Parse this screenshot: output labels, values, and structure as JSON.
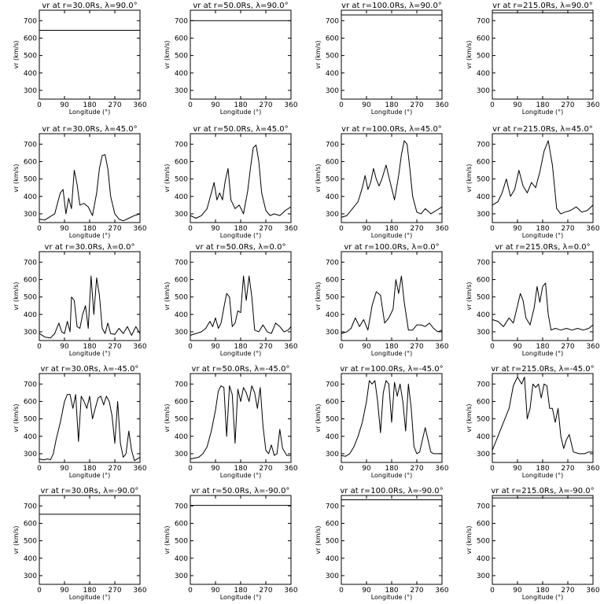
{
  "labels": {
    "xlabel": "Longitude (°)",
    "ylabel": "vr (km/s)",
    "xticks": [
      "0",
      "90",
      "180",
      "270",
      "360"
    ],
    "yticks": [
      "300",
      "400",
      "500",
      "600",
      "700"
    ]
  },
  "chart_data": [
    {
      "type": "line",
      "title": "vr at r=30.0Rs, λ=90.0°",
      "xlabel": "Longitude (°)",
      "ylabel": "vr (km/s)",
      "xlim": [
        0,
        360
      ],
      "ylim": [
        250,
        760
      ],
      "series": [
        {
          "x": [
            0,
            360
          ],
          "y": [
            645,
            645
          ]
        }
      ]
    },
    {
      "type": "line",
      "title": "vr at r=50.0Rs, λ=90.0°",
      "xlabel": "Longitude (°)",
      "ylabel": "vr (km/s)",
      "xlim": [
        0,
        360
      ],
      "ylim": [
        250,
        760
      ],
      "series": [
        {
          "x": [
            0,
            360
          ],
          "y": [
            700,
            700
          ]
        }
      ]
    },
    {
      "type": "line",
      "title": "vr at r=100.0Rs, λ=90.0°",
      "xlabel": "Longitude (°)",
      "ylabel": "vr (km/s)",
      "xlim": [
        0,
        360
      ],
      "ylim": [
        250,
        760
      ],
      "series": [
        {
          "x": [
            0,
            360
          ],
          "y": [
            733,
            733
          ]
        }
      ]
    },
    {
      "type": "line",
      "title": "vr at r=215.0Rs, λ=90.0°",
      "xlabel": "Longitude (°)",
      "ylabel": "vr (km/s)",
      "xlim": [
        0,
        360
      ],
      "ylim": [
        250,
        760
      ],
      "series": [
        {
          "x": [
            0,
            360
          ],
          "y": [
            745,
            745
          ]
        }
      ]
    },
    {
      "type": "line",
      "title": "vr at r=30.0Rs, λ=45.0°",
      "xlabel": "Longitude (°)",
      "ylabel": "vr (km/s)",
      "xlim": [
        0,
        360
      ],
      "ylim": [
        250,
        760
      ],
      "series": [
        {
          "x": [
            0,
            20,
            40,
            55,
            65,
            75,
            85,
            95,
            105,
            115,
            125,
            135,
            145,
            160,
            175,
            190,
            205,
            215,
            225,
            235,
            245,
            255,
            270,
            285,
            300,
            320,
            340,
            360
          ],
          "y": [
            270,
            265,
            285,
            300,
            360,
            420,
            440,
            300,
            390,
            330,
            550,
            470,
            350,
            360,
            340,
            290,
            420,
            560,
            635,
            640,
            560,
            400,
            300,
            270,
            260,
            275,
            290,
            300
          ]
        }
      ]
    },
    {
      "type": "line",
      "title": "vr at r=50.0Rs, λ=45.0°",
      "xlabel": "Longitude (°)",
      "ylabel": "vr (km/s)",
      "xlim": [
        0,
        360
      ],
      "ylim": [
        250,
        760
      ],
      "series": [
        {
          "x": [
            0,
            20,
            40,
            60,
            75,
            85,
            95,
            105,
            115,
            125,
            135,
            145,
            160,
            175,
            190,
            205,
            215,
            225,
            235,
            245,
            255,
            270,
            285,
            300,
            320,
            340,
            360
          ],
          "y": [
            290,
            275,
            290,
            330,
            420,
            480,
            380,
            420,
            380,
            490,
            560,
            380,
            330,
            350,
            300,
            430,
            560,
            680,
            695,
            600,
            420,
            320,
            290,
            300,
            290,
            320,
            340
          ]
        }
      ]
    },
    {
      "type": "line",
      "title": "vr at r=100.0Rs, λ=45.0°",
      "xlabel": "Longitude (°)",
      "ylabel": "vr (km/s)",
      "xlim": [
        0,
        360
      ],
      "ylim": [
        250,
        760
      ],
      "series": [
        {
          "x": [
            0,
            20,
            40,
            60,
            75,
            85,
            95,
            105,
            115,
            125,
            135,
            145,
            160,
            175,
            190,
            205,
            215,
            225,
            235,
            245,
            255,
            270,
            285,
            300,
            320,
            340,
            360
          ],
          "y": [
            280,
            290,
            330,
            370,
            450,
            520,
            440,
            480,
            560,
            500,
            460,
            500,
            580,
            480,
            380,
            520,
            640,
            720,
            700,
            560,
            400,
            310,
            300,
            330,
            300,
            320,
            340
          ]
        }
      ]
    },
    {
      "type": "line",
      "title": "vr at r=215.0Rs, λ=45.0°",
      "xlabel": "Longitude (°)",
      "ylabel": "vr (km/s)",
      "xlim": [
        0,
        360
      ],
      "ylim": [
        250,
        760
      ],
      "series": [
        {
          "x": [
            0,
            20,
            35,
            50,
            65,
            80,
            95,
            110,
            125,
            140,
            155,
            170,
            185,
            200,
            215,
            230,
            245,
            260,
            280,
            300,
            320,
            340,
            360
          ],
          "y": [
            350,
            370,
            420,
            500,
            400,
            440,
            550,
            460,
            420,
            480,
            450,
            540,
            660,
            720,
            580,
            330,
            300,
            310,
            320,
            340,
            310,
            320,
            350
          ]
        }
      ]
    },
    {
      "type": "line",
      "title": "vr at r=30.0Rs, λ=0.0°",
      "xlabel": "Longitude (°)",
      "ylabel": "vr (km/s)",
      "xlim": [
        0,
        360
      ],
      "ylim": [
        250,
        760
      ],
      "series": [
        {
          "x": [
            0,
            20,
            40,
            55,
            70,
            80,
            90,
            100,
            110,
            115,
            125,
            135,
            145,
            155,
            165,
            175,
            185,
            195,
            205,
            215,
            225,
            235,
            245,
            255,
            270,
            285,
            300,
            315,
            330,
            345,
            360
          ],
          "y": [
            290,
            270,
            265,
            290,
            350,
            300,
            290,
            360,
            300,
            500,
            480,
            330,
            320,
            400,
            450,
            320,
            620,
            400,
            610,
            510,
            320,
            290,
            350,
            290,
            285,
            320,
            290,
            330,
            280,
            330,
            290
          ]
        }
      ]
    },
    {
      "type": "line",
      "title": "vr at r=50.0Rs, λ=0.0°",
      "xlabel": "Longitude (°)",
      "ylabel": "vr (km/s)",
      "xlim": [
        0,
        360
      ],
      "ylim": [
        250,
        760
      ],
      "series": [
        {
          "x": [
            0,
            20,
            40,
            55,
            70,
            80,
            90,
            100,
            110,
            120,
            130,
            140,
            150,
            160,
            170,
            180,
            190,
            200,
            210,
            220,
            230,
            245,
            260,
            275,
            290,
            305,
            320,
            335,
            350,
            360
          ],
          "y": [
            280,
            290,
            300,
            320,
            360,
            330,
            380,
            320,
            350,
            440,
            520,
            500,
            330,
            350,
            420,
            410,
            620,
            480,
            620,
            500,
            310,
            300,
            340,
            300,
            290,
            350,
            330,
            300,
            310,
            330
          ]
        }
      ]
    },
    {
      "type": "line",
      "title": "vr at r=100.0Rs, λ=0.0°",
      "xlabel": "Longitude (°)",
      "ylabel": "vr (km/s)",
      "xlim": [
        0,
        360
      ],
      "ylim": [
        250,
        760
      ],
      "series": [
        {
          "x": [
            0,
            20,
            35,
            50,
            65,
            80,
            95,
            110,
            125,
            140,
            155,
            170,
            185,
            195,
            205,
            215,
            225,
            240,
            255,
            270,
            285,
            300,
            315,
            330,
            345,
            360
          ],
          "y": [
            290,
            300,
            320,
            380,
            330,
            370,
            310,
            450,
            530,
            510,
            350,
            380,
            430,
            600,
            520,
            620,
            470,
            310,
            310,
            340,
            340,
            330,
            350,
            320,
            300,
            310
          ]
        }
      ]
    },
    {
      "type": "line",
      "title": "vr at r=215.0Rs, λ=0.0°",
      "xlabel": "Longitude (°)",
      "ylabel": "vr (km/s)",
      "xlim": [
        0,
        360
      ],
      "ylim": [
        250,
        760
      ],
      "series": [
        {
          "x": [
            0,
            20,
            40,
            60,
            75,
            90,
            100,
            110,
            120,
            135,
            150,
            160,
            170,
            180,
            190,
            200,
            210,
            225,
            245,
            265,
            285,
            305,
            325,
            345,
            360
          ],
          "y": [
            370,
            360,
            330,
            380,
            350,
            450,
            520,
            480,
            380,
            340,
            440,
            560,
            470,
            560,
            580,
            400,
            310,
            320,
            310,
            320,
            310,
            320,
            310,
            320,
            340
          ]
        }
      ]
    },
    {
      "type": "line",
      "title": "vr at r=30.0Rs, λ=-45.0°",
      "xlabel": "Longitude (°)",
      "ylabel": "vr (km/s)",
      "xlim": [
        0,
        360
      ],
      "ylim": [
        250,
        760
      ],
      "series": [
        {
          "x": [
            0,
            15,
            30,
            40,
            50,
            60,
            75,
            90,
            100,
            110,
            120,
            130,
            140,
            150,
            160,
            170,
            180,
            190,
            200,
            210,
            220,
            230,
            240,
            250,
            260,
            270,
            280,
            290,
            300,
            310,
            320,
            330,
            340,
            350,
            360
          ],
          "y": [
            270,
            265,
            270,
            265,
            300,
            380,
            480,
            600,
            640,
            640,
            560,
            640,
            370,
            630,
            600,
            560,
            630,
            500,
            560,
            620,
            630,
            580,
            630,
            600,
            520,
            360,
            600,
            360,
            280,
            300,
            430,
            320,
            260,
            270,
            280
          ]
        }
      ]
    },
    {
      "type": "line",
      "title": "vr at r=50.0Rs, λ=-45.0°",
      "xlabel": "Longitude (°)",
      "ylabel": "vr (km/s)",
      "xlim": [
        0,
        360
      ],
      "ylim": [
        250,
        760
      ],
      "series": [
        {
          "x": [
            0,
            15,
            30,
            45,
            60,
            75,
            90,
            100,
            110,
            120,
            130,
            140,
            150,
            160,
            170,
            180,
            190,
            200,
            210,
            220,
            230,
            240,
            250,
            260,
            270,
            280,
            290,
            300,
            310,
            320,
            330,
            345,
            360
          ],
          "y": [
            270,
            275,
            280,
            300,
            340,
            430,
            550,
            660,
            690,
            680,
            400,
            690,
            640,
            360,
            670,
            600,
            680,
            650,
            600,
            690,
            650,
            560,
            680,
            460,
            320,
            300,
            350,
            290,
            300,
            440,
            330,
            290,
            290
          ]
        }
      ]
    },
    {
      "type": "line",
      "title": "vr at r=100.0Rs, λ=-45.0°",
      "xlabel": "Longitude (°)",
      "ylabel": "vr (km/s)",
      "xlim": [
        0,
        360
      ],
      "ylim": [
        250,
        760
      ],
      "series": [
        {
          "x": [
            0,
            15,
            30,
            45,
            60,
            75,
            90,
            100,
            110,
            120,
            130,
            140,
            150,
            160,
            170,
            180,
            190,
            200,
            210,
            220,
            230,
            240,
            250,
            260,
            270,
            280,
            290,
            300,
            310,
            320,
            330,
            345,
            360
          ],
          "y": [
            290,
            285,
            300,
            340,
            400,
            480,
            600,
            720,
            700,
            720,
            600,
            420,
            650,
            720,
            700,
            480,
            710,
            630,
            700,
            600,
            430,
            700,
            560,
            340,
            300,
            310,
            380,
            450,
            380,
            310,
            300,
            300,
            300
          ]
        }
      ]
    },
    {
      "type": "line",
      "title": "vr at r=215.0Rs, λ=-45.0°",
      "xlabel": "Longitude (°)",
      "ylabel": "vr (km/s)",
      "xlim": [
        0,
        360
      ],
      "ylim": [
        250,
        760
      ],
      "series": [
        {
          "x": [
            0,
            20,
            40,
            60,
            75,
            90,
            105,
            115,
            125,
            135,
            145,
            155,
            165,
            175,
            185,
            195,
            205,
            215,
            225,
            235,
            245,
            255,
            265,
            275,
            290,
            310,
            330,
            345,
            360
          ],
          "y": [
            320,
            400,
            480,
            560,
            690,
            740,
            700,
            740,
            500,
            560,
            700,
            680,
            700,
            620,
            700,
            690,
            560,
            560,
            480,
            560,
            400,
            330,
            380,
            410,
            310,
            300,
            300,
            310,
            310
          ]
        }
      ]
    },
    {
      "type": "line",
      "title": "vr at r=30.0Rs, λ=-90.0°",
      "xlabel": "Longitude (°)",
      "ylabel": "vr (km/s)",
      "xlim": [
        0,
        360
      ],
      "ylim": [
        250,
        760
      ],
      "series": [
        {
          "x": [
            0,
            360
          ],
          "y": [
            652,
            652
          ]
        }
      ]
    },
    {
      "type": "line",
      "title": "vr at r=50.0Rs, λ=-90.0°",
      "xlabel": "Longitude (°)",
      "ylabel": "vr (km/s)",
      "xlim": [
        0,
        360
      ],
      "ylim": [
        250,
        760
      ],
      "series": [
        {
          "x": [
            0,
            360
          ],
          "y": [
            703,
            703
          ]
        }
      ]
    },
    {
      "type": "line",
      "title": "vr at r=100.0Rs, λ=-90.0°",
      "xlabel": "Longitude (°)",
      "ylabel": "vr (km/s)",
      "xlim": [
        0,
        360
      ],
      "ylim": [
        250,
        760
      ],
      "series": [
        {
          "x": [
            0,
            360
          ],
          "y": [
            735,
            735
          ]
        }
      ]
    },
    {
      "type": "line",
      "title": "vr at r=215.0Rs, λ=-90.0°",
      "xlabel": "Longitude (°)",
      "ylabel": "vr (km/s)",
      "xlim": [
        0,
        360
      ],
      "ylim": [
        250,
        760
      ],
      "series": [
        {
          "x": [
            0,
            360
          ],
          "y": [
            746,
            746
          ]
        }
      ]
    }
  ]
}
